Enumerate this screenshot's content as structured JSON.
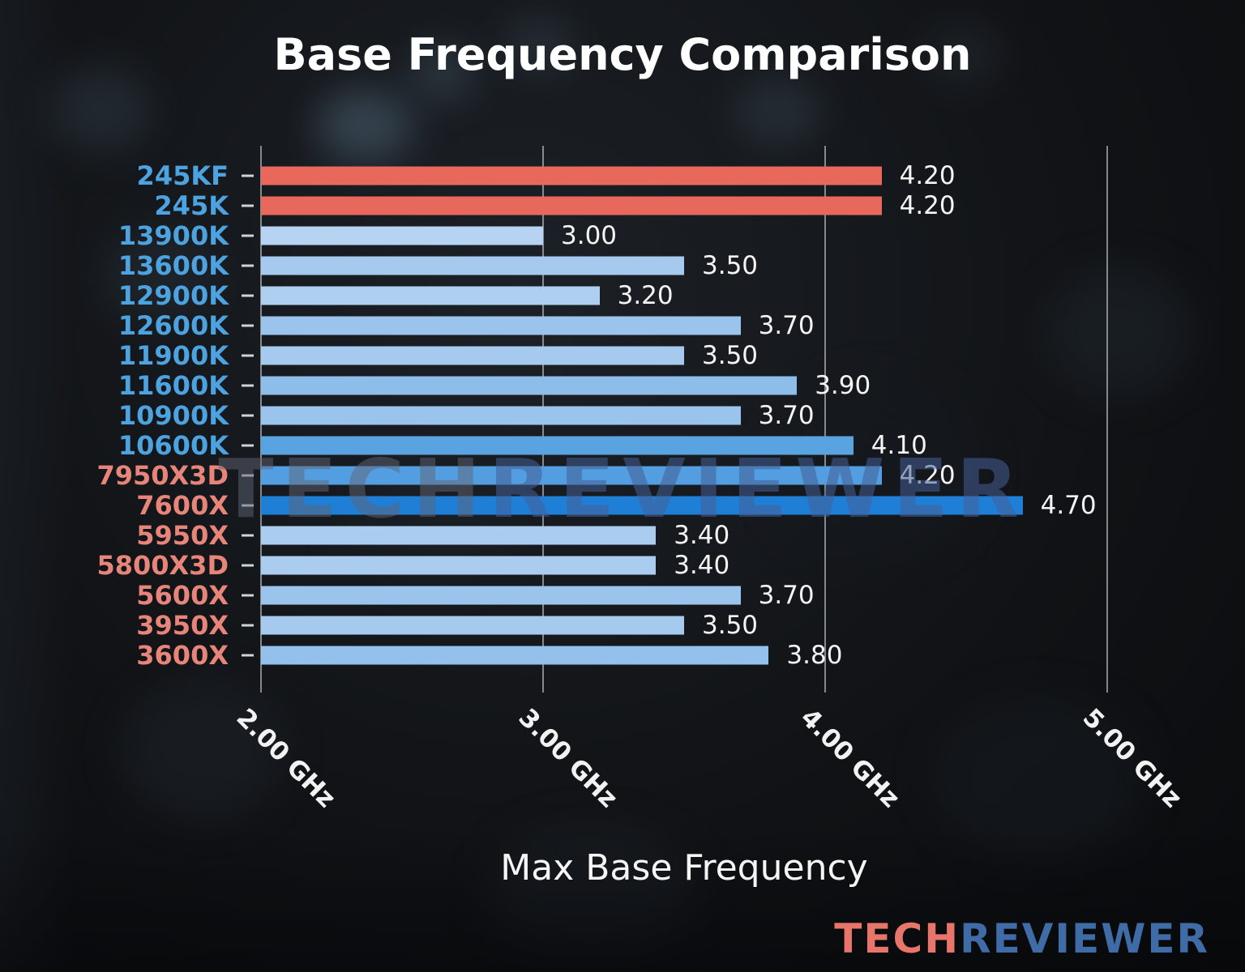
{
  "title": "Base Frequency Comparison",
  "xlabel": "Max Base Frequency",
  "watermark": {
    "part1": "TECH",
    "part2": "REVIEWER"
  },
  "logo": {
    "part1": "TECH",
    "part2": "REVIEWER"
  },
  "colors": {
    "intel_label": "#4da3e0",
    "amd_label": "#e8857a",
    "bar_red": "#e8695c",
    "bar_strong_blue": "#1f7ed6",
    "value_text": "#f4f4f4",
    "grid": "#d0d4d8",
    "title_text": "#ffffff",
    "logo_tech": "#e8756a",
    "logo_reviewer": "#3f6ca6"
  },
  "chart_data": {
    "type": "bar",
    "orientation": "horizontal",
    "title": "Base Frequency Comparison",
    "xlabel": "Max Base Frequency",
    "ylabel": "",
    "grid": true,
    "legend": false,
    "xlim": [
      2.0,
      5.35
    ],
    "x_ticks": [
      "2.00 GHz",
      "3.00 GHz",
      "4.00 GHz",
      "5.00 GHz"
    ],
    "x_tick_values": [
      2.0,
      3.0,
      4.0,
      5.0
    ],
    "categories": [
      "245KF",
      "245K",
      "13900K",
      "13600K",
      "12900K",
      "12600K",
      "11900K",
      "11600K",
      "10900K",
      "10600K",
      "7950X3D",
      "7600X",
      "5950X",
      "5800X3D",
      "5600X",
      "3950X",
      "3600X"
    ],
    "values": [
      4.2,
      4.2,
      3.0,
      3.5,
      3.2,
      3.7,
      3.5,
      3.9,
      3.7,
      4.1,
      4.2,
      4.7,
      3.4,
      3.4,
      3.7,
      3.5,
      3.8
    ],
    "value_labels": [
      "4.20",
      "4.20",
      "3.00",
      "3.50",
      "3.20",
      "3.70",
      "3.50",
      "3.90",
      "3.70",
      "4.10",
      "4.20",
      "4.70",
      "3.40",
      "3.40",
      "3.70",
      "3.50",
      "3.80"
    ],
    "bar_colors": [
      "#e8695c",
      "#e8695c",
      "#b7d3f2",
      "#a5caee",
      "#afcff0",
      "#9ac4ec",
      "#a5caee",
      "#8dbde9",
      "#9ac4ec",
      "#5aa3e1",
      "#539ee0",
      "#1f7ed6",
      "#aaccef",
      "#aaccef",
      "#9ac4ec",
      "#a5caee",
      "#94c1eb"
    ],
    "label_color_keys": [
      "intel",
      "intel",
      "intel",
      "intel",
      "intel",
      "intel",
      "intel",
      "intel",
      "intel",
      "intel",
      "amd",
      "amd",
      "amd",
      "amd",
      "amd",
      "amd",
      "amd"
    ]
  }
}
